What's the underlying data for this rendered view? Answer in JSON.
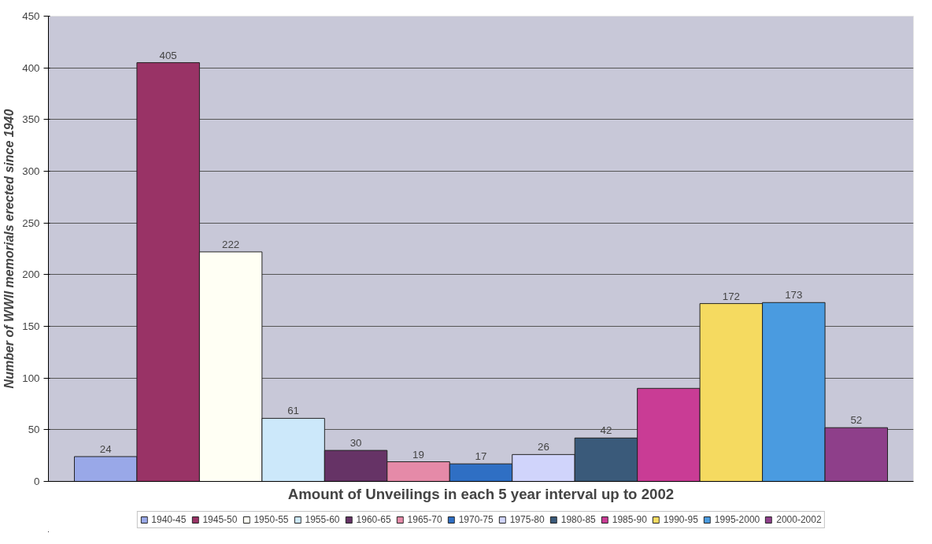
{
  "chart_data": {
    "type": "bar",
    "xlabel": "Amount of Unveilings in each 5 year interval up to 2002",
    "ylabel": "Number of WWII memorials erected since 1940",
    "categories": [
      null
    ],
    "series": [
      {
        "name": "1940-45",
        "color": "#99a8e8",
        "values": [
          24
        ],
        "value_labels": [
          "24"
        ]
      },
      {
        "name": "1945-50",
        "color": "#993366",
        "values": [
          405
        ],
        "value_labels": [
          "405"
        ]
      },
      {
        "name": "1950-55",
        "color": "#fffff4",
        "values": [
          222
        ],
        "value_labels": [
          "222"
        ]
      },
      {
        "name": "1955-60",
        "color": "#cce8fa",
        "values": [
          61
        ],
        "value_labels": [
          "61"
        ]
      },
      {
        "name": "1960-65",
        "color": "#663366",
        "values": [
          30
        ],
        "value_labels": [
          "30"
        ]
      },
      {
        "name": "1965-70",
        "color": "#e58aa8",
        "values": [
          19
        ],
        "value_labels": [
          "19"
        ]
      },
      {
        "name": "1970-75",
        "color": "#2f6fc4",
        "values": [
          17
        ],
        "value_labels": [
          "17"
        ]
      },
      {
        "name": "1975-80",
        "color": "#d0d4fb",
        "values": [
          26
        ],
        "value_labels": [
          "26"
        ]
      },
      {
        "name": "1980-85",
        "color": "#3a5a7a",
        "values": [
          42
        ],
        "value_labels": [
          "42"
        ]
      },
      {
        "name": "1985-90",
        "color": "#c93c95",
        "values": [
          90
        ],
        "value_labels": [
          null
        ]
      },
      {
        "name": "1990-95",
        "color": "#f5da60",
        "values": [
          172
        ],
        "value_labels": [
          "172"
        ]
      },
      {
        "name": "1995-2000",
        "color": "#4a9be0",
        "values": [
          173
        ],
        "value_labels": [
          "173"
        ]
      },
      {
        "name": "2000-2002",
        "color": "#8e3f8a",
        "values": [
          52
        ],
        "value_labels": [
          "52"
        ]
      }
    ],
    "ylim": [
      0,
      450
    ],
    "yticks": [
      0,
      50,
      100,
      150,
      200,
      250,
      300,
      350,
      400,
      450
    ],
    "grid": "y",
    "legend": "bottom"
  }
}
